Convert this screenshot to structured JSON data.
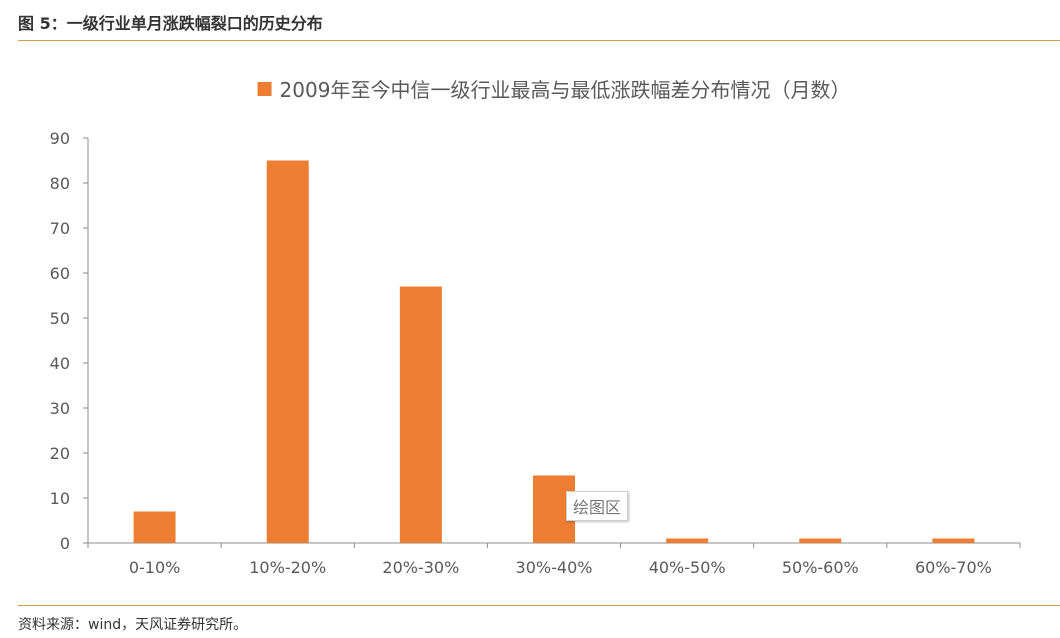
{
  "figure_title": "图 5：一级行业单月涨跌幅裂口的历史分布",
  "source": "资料来源：wind，天风证券研究所。",
  "tooltip": "绘图区",
  "chart_data": {
    "type": "bar",
    "title": "",
    "legend": {
      "position": "top",
      "entries": [
        "2009年至今中信一级行业最高与最低涨跌幅差分布情况（月数）"
      ]
    },
    "categories": [
      "0-10%",
      "10%-20%",
      "20%-30%",
      "30%-40%",
      "40%-50%",
      "50%-60%",
      "60%-70%"
    ],
    "series": [
      {
        "name": "2009年至今中信一级行业最高与最低涨跌幅差分布情况（月数）",
        "values": [
          7,
          85,
          57,
          15,
          1,
          1,
          1
        ],
        "color": "#ed7d31"
      }
    ],
    "ylim": [
      0,
      90
    ],
    "yticks": [
      0,
      10,
      20,
      30,
      40,
      50,
      60,
      70,
      80,
      90
    ],
    "xlabel": "",
    "ylabel": "",
    "grid": false
  }
}
